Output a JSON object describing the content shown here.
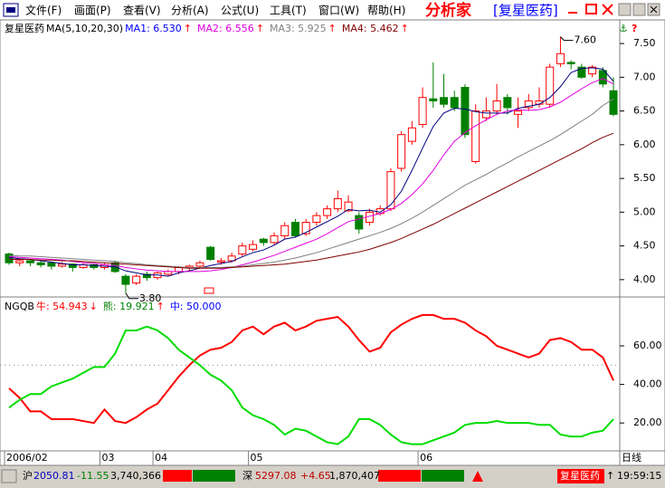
{
  "menu": {
    "items": [
      "文件(F)",
      "画面(P)",
      "查看(V)",
      "分析(A)",
      "公式(U)",
      "工具(T)",
      "窗口(W)",
      "帮助(H)"
    ],
    "app_title": "分析家",
    "stock": "[复星医药]"
  },
  "chart_data": [
    {
      "type": "candlestick",
      "title": "复星医药",
      "subtitle": "MA(5,10,20,30)",
      "categories": [
        "2006/02",
        null,
        null,
        null,
        null,
        null,
        null,
        null,
        null,
        "03",
        null,
        null,
        null,
        null,
        "04",
        null,
        null,
        null,
        null,
        null,
        null,
        null,
        null,
        "05",
        null,
        null,
        null,
        null,
        null,
        null,
        null,
        null,
        null,
        null,
        null,
        null,
        null,
        null,
        null,
        "06",
        null,
        null,
        null,
        null,
        null,
        null,
        null,
        null,
        null,
        null,
        null,
        null,
        null,
        null,
        null,
        null,
        null,
        null
      ],
      "period": "日线",
      "candles": [
        [
          4.38,
          4.4,
          4.22,
          4.25
        ],
        [
          4.25,
          4.3,
          4.2,
          4.28
        ],
        [
          4.28,
          4.3,
          4.2,
          4.25
        ],
        [
          4.25,
          4.28,
          4.18,
          4.22
        ],
        [
          4.25,
          4.27,
          4.15,
          4.2
        ],
        [
          4.2,
          4.26,
          4.18,
          4.23
        ],
        [
          4.23,
          4.24,
          4.12,
          4.18
        ],
        [
          4.18,
          4.25,
          4.16,
          4.22
        ],
        [
          4.22,
          4.24,
          4.15,
          4.18
        ],
        [
          4.18,
          4.25,
          4.15,
          4.22
        ],
        [
          4.25,
          4.28,
          4.1,
          4.12
        ],
        [
          4.05,
          4.08,
          3.8,
          3.93
        ],
        [
          3.95,
          4.08,
          3.92,
          4.05
        ],
        [
          4.08,
          4.12,
          3.98,
          4.03
        ],
        [
          4.03,
          4.12,
          4.0,
          4.1
        ],
        [
          4.08,
          4.15,
          4.05,
          4.12
        ],
        [
          4.12,
          4.2,
          4.08,
          4.18
        ],
        [
          4.18,
          4.22,
          4.12,
          4.2
        ],
        [
          4.2,
          4.28,
          4.16,
          4.25
        ],
        [
          4.48,
          4.5,
          4.28,
          4.3
        ],
        [
          4.26,
          4.32,
          4.22,
          4.28
        ],
        [
          4.28,
          4.4,
          4.25,
          4.35
        ],
        [
          4.38,
          4.55,
          4.35,
          4.5
        ],
        [
          4.45,
          4.58,
          4.42,
          4.52
        ],
        [
          4.6,
          4.62,
          4.5,
          4.55
        ],
        [
          4.55,
          4.7,
          4.52,
          4.65
        ],
        [
          4.65,
          4.85,
          4.6,
          4.8
        ],
        [
          4.85,
          4.9,
          4.62,
          4.65
        ],
        [
          4.68,
          4.9,
          4.65,
          4.85
        ],
        [
          4.85,
          5.0,
          4.8,
          4.95
        ],
        [
          4.95,
          5.1,
          4.9,
          5.05
        ],
        [
          5.05,
          5.32,
          5.0,
          5.2
        ],
        [
          5.02,
          5.25,
          5.0,
          5.15
        ],
        [
          4.95,
          5.0,
          4.68,
          4.75
        ],
        [
          4.85,
          5.05,
          4.8,
          5.0
        ],
        [
          4.98,
          5.1,
          4.95,
          5.05
        ],
        [
          5.05,
          5.65,
          5.02,
          5.6
        ],
        [
          5.65,
          6.2,
          5.6,
          6.15
        ],
        [
          6.05,
          6.35,
          6.0,
          6.25
        ],
        [
          6.3,
          6.85,
          6.25,
          6.7
        ],
        [
          6.68,
          7.22,
          6.55,
          6.65
        ],
        [
          6.7,
          7.05,
          6.55,
          6.6
        ],
        [
          6.7,
          6.8,
          6.5,
          6.55
        ],
        [
          6.85,
          6.9,
          6.1,
          6.15
        ],
        [
          5.75,
          6.6,
          5.72,
          6.5
        ],
        [
          6.4,
          6.7,
          6.35,
          6.5
        ],
        [
          6.5,
          6.9,
          6.45,
          6.65
        ],
        [
          6.7,
          6.75,
          6.45,
          6.55
        ],
        [
          6.45,
          6.7,
          6.25,
          6.5
        ],
        [
          6.55,
          6.75,
          6.5,
          6.65
        ],
        [
          6.6,
          6.85,
          6.55,
          6.65
        ],
        [
          6.6,
          7.2,
          6.55,
          7.15
        ],
        [
          7.2,
          7.6,
          7.15,
          7.35
        ],
        [
          7.22,
          7.25,
          7.12,
          7.2
        ],
        [
          7.15,
          7.2,
          6.98,
          7.0
        ],
        [
          7.05,
          7.18,
          7.0,
          7.15
        ],
        [
          7.1,
          7.15,
          6.85,
          6.9
        ],
        [
          6.8,
          7.0,
          6.42,
          6.45
        ]
      ],
      "up_color": "#ff0000",
      "down_color": "#008000",
      "ylim": [
        3.77,
        7.85
      ],
      "yticks": [
        {
          "value": 4,
          "label": "4.00"
        },
        {
          "value": 4.5,
          "label": "4.50"
        },
        {
          "value": 5,
          "label": "5.00"
        },
        {
          "value": 5.5,
          "label": "5.50"
        },
        {
          "value": 6,
          "label": "6.00"
        },
        {
          "value": 6.5,
          "label": "6.50"
        },
        {
          "value": 7,
          "label": "7.00"
        },
        {
          "value": 7.5,
          "label": "7.50"
        }
      ],
      "annotations": [
        {
          "value": 7.6,
          "label": "7.60"
        },
        {
          "value": 3.8,
          "label": "3.80"
        }
      ],
      "series": [
        {
          "legend_label": "MA1: 6.530",
          "arrow": "↑",
          "color": "#000080",
          "values": [
            4.33,
            4.31,
            4.3,
            4.28,
            4.26,
            4.24,
            4.22,
            4.22,
            4.21,
            4.2,
            4.19,
            4.13,
            4.1,
            4.07,
            4.07,
            4.05,
            4.1,
            4.13,
            4.17,
            4.21,
            4.24,
            4.27,
            4.34,
            4.4,
            4.44,
            4.51,
            4.6,
            4.63,
            4.7,
            4.78,
            4.86,
            4.94,
            5.04,
            5.02,
            5.03,
            5.0,
            5.11,
            5.31,
            5.62,
            5.95,
            6.27,
            6.47,
            6.54,
            6.53,
            6.49,
            6.47,
            6.47,
            6.47,
            6.54,
            6.57,
            6.6,
            6.7,
            6.86,
            7.07,
            7.13,
            7.14,
            7.12,
            6.94
          ]
        },
        {
          "legend_label": "MA2: 6.556",
          "arrow": "↑",
          "color": "#e000e0",
          "values": [
            4.34,
            4.33,
            4.32,
            4.31,
            4.3,
            4.29,
            4.27,
            4.25,
            4.24,
            4.22,
            4.21,
            4.18,
            4.16,
            4.14,
            4.13,
            4.12,
            4.12,
            4.12,
            4.12,
            4.13,
            4.15,
            4.18,
            4.22,
            4.26,
            4.31,
            4.36,
            4.42,
            4.48,
            4.54,
            4.6,
            4.68,
            4.77,
            4.86,
            4.9,
            4.94,
            4.98,
            5.04,
            5.13,
            5.26,
            5.42,
            5.62,
            5.85,
            6.05,
            6.18,
            6.28,
            6.37,
            6.45,
            6.5,
            6.52,
            6.51,
            6.52,
            6.56,
            6.63,
            6.73,
            6.83,
            6.92,
            6.98,
            6.9
          ]
        },
        {
          "legend_label": "MA3: 5.925",
          "arrow": "↑",
          "color": "#808080",
          "values": [
            4.36,
            4.35,
            4.35,
            4.34,
            4.33,
            4.32,
            4.31,
            4.3,
            4.29,
            4.28,
            4.27,
            4.25,
            4.24,
            4.22,
            4.21,
            4.2,
            4.19,
            4.18,
            4.18,
            4.18,
            4.18,
            4.19,
            4.2,
            4.22,
            4.24,
            4.26,
            4.29,
            4.32,
            4.36,
            4.4,
            4.45,
            4.5,
            4.55,
            4.6,
            4.65,
            4.7,
            4.76,
            4.83,
            4.91,
            5.0,
            5.1,
            5.2,
            5.3,
            5.4,
            5.48,
            5.56,
            5.65,
            5.73,
            5.82,
            5.9,
            5.98,
            6.06,
            6.15,
            6.25,
            6.35,
            6.45,
            6.58,
            6.68
          ]
        },
        {
          "legend_label": "MA4: 5.462",
          "arrow": "↑",
          "color": "#800000",
          "values": [
            4.3,
            4.3,
            4.3,
            4.29,
            4.29,
            4.28,
            4.28,
            4.27,
            4.26,
            4.25,
            4.24,
            4.23,
            4.22,
            4.21,
            4.2,
            4.19,
            4.18,
            4.17,
            4.17,
            4.17,
            4.17,
            4.18,
            4.19,
            4.2,
            4.21,
            4.22,
            4.23,
            4.25,
            4.27,
            4.29,
            4.32,
            4.35,
            4.38,
            4.41,
            4.45,
            4.5,
            4.55,
            4.61,
            4.68,
            4.75,
            4.82,
            4.9,
            4.98,
            5.06,
            5.14,
            5.22,
            5.3,
            5.38,
            5.46,
            5.54,
            5.62,
            5.7,
            5.78,
            5.86,
            5.94,
            6.03,
            6.11,
            6.17
          ]
        }
      ]
    },
    {
      "type": "line",
      "title": "NGQB",
      "ylim": [
        6,
        83
      ],
      "yticks": [
        {
          "value": 20,
          "label": "20.00"
        },
        {
          "value": 40,
          "label": "40.00"
        },
        {
          "value": 60,
          "label": "60.00"
        }
      ],
      "midline": {
        "legend_label": "中: 50.000",
        "value": 50,
        "color": "#0000ff"
      },
      "series": [
        {
          "legend_label": "牛: 54.943",
          "arrow": "↓",
          "color": "#ff0000",
          "values": [
            38,
            33,
            26,
            26,
            22,
            22,
            22,
            21,
            20,
            27,
            21,
            20,
            23,
            27,
            30,
            37,
            44,
            50,
            55,
            58,
            59,
            62,
            68,
            70,
            66,
            70,
            72,
            68,
            70,
            73,
            74,
            75,
            70,
            63,
            57,
            59,
            67,
            71,
            74,
            76,
            76,
            74,
            74,
            72,
            68,
            65,
            60,
            58,
            56,
            54,
            56,
            63,
            64,
            62,
            58,
            58,
            54,
            42
          ]
        },
        {
          "legend_label": "熊: 19.921",
          "arrow": "↑",
          "color": "#00dd00",
          "values": [
            28,
            32,
            35,
            35,
            39,
            41,
            43,
            46,
            49,
            49,
            56,
            68,
            68,
            70,
            68,
            64,
            58,
            54,
            50,
            45,
            42,
            37,
            28,
            24,
            22,
            19,
            14,
            17,
            16,
            13,
            10,
            9,
            13,
            22,
            22,
            19,
            14,
            10,
            9,
            9,
            11,
            13,
            15,
            19,
            20,
            20,
            21,
            20,
            20,
            20,
            19,
            19,
            14,
            13,
            13,
            15,
            16,
            22
          ]
        }
      ]
    }
  ],
  "status_bar": {
    "sh_label": "沪",
    "sh_index": "2050.81",
    "sh_change": "-11.55",
    "sh_volume": "3,740,366",
    "sz_label": "深",
    "sz_index": "5297.08",
    "sz_change": "+4.65",
    "sz_volume": "1,870,407",
    "stock": "复星医药",
    "arrow": "↑",
    "time": "19:59:15"
  }
}
